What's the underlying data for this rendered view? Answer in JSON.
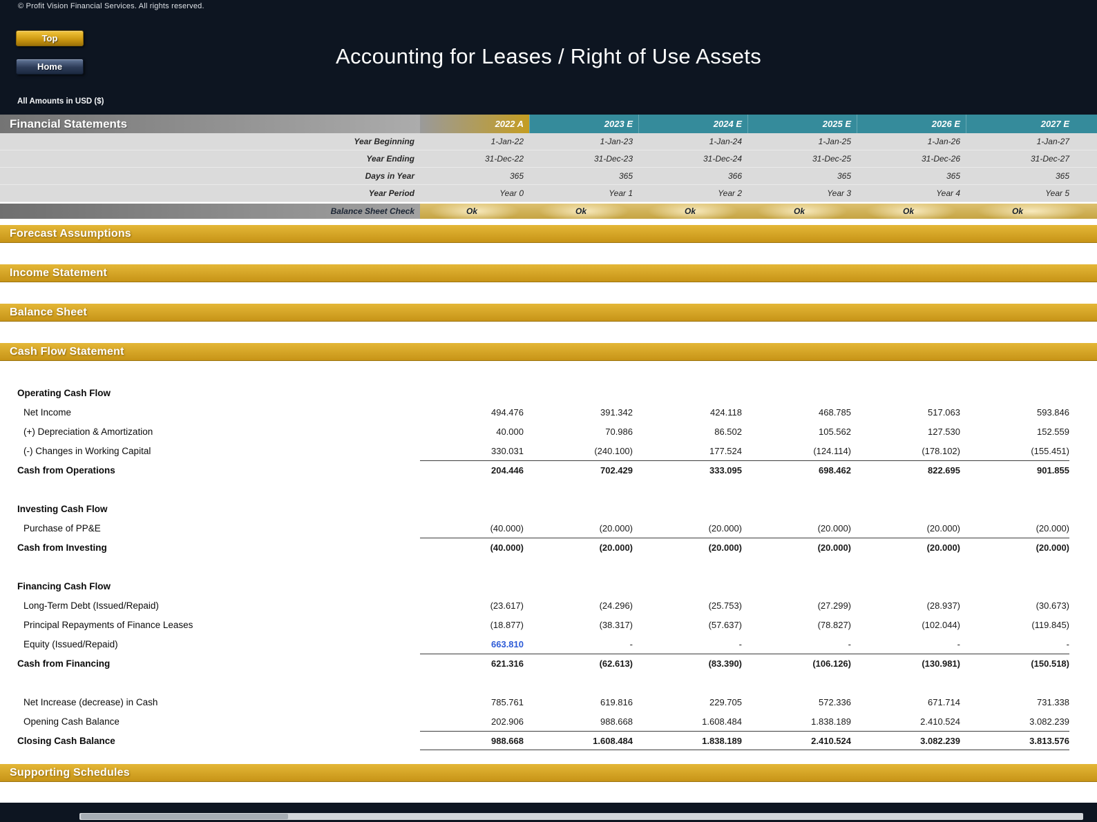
{
  "header": {
    "copyright": "© Profit Vision Financial Services. All rights reserved.",
    "buttons": {
      "top": "Top",
      "home": "Home"
    },
    "title": "Accounting for Leases / Right of Use Assets",
    "amounts_note": "All Amounts in USD ($)"
  },
  "table": {
    "title": "Financial Statements",
    "columns": [
      "2022 A",
      "2023 E",
      "2024 E",
      "2025 E",
      "2026 E",
      "2027 E"
    ],
    "info_rows": [
      {
        "label": "Year Beginning",
        "values": [
          "1-Jan-22",
          "1-Jan-23",
          "1-Jan-24",
          "1-Jan-25",
          "1-Jan-26",
          "1-Jan-27"
        ]
      },
      {
        "label": "Year Ending",
        "values": [
          "31-Dec-22",
          "31-Dec-23",
          "31-Dec-24",
          "31-Dec-25",
          "31-Dec-26",
          "31-Dec-27"
        ]
      },
      {
        "label": "Days in Year",
        "values": [
          "365",
          "365",
          "366",
          "365",
          "365",
          "365"
        ]
      },
      {
        "label": "Year Period",
        "values": [
          "Year 0",
          "Year 1",
          "Year 2",
          "Year 3",
          "Year 4",
          "Year 5"
        ]
      }
    ],
    "check_row": {
      "label": "Balance Sheet Check",
      "values": [
        "Ok",
        "Ok",
        "Ok",
        "Ok",
        "Ok",
        "Ok"
      ]
    }
  },
  "sections": {
    "forecast_assumptions": "Forecast Assumptions",
    "income_statement": "Income Statement",
    "balance_sheet": "Balance Sheet",
    "cash_flow_statement": "Cash Flow Statement",
    "supporting_schedules": "Supporting Schedules"
  },
  "cash_flow": {
    "rows": [
      {
        "type": "group",
        "label": "Operating Cash Flow"
      },
      {
        "type": "item",
        "label": "Net Income",
        "values": [
          "494.476",
          "391.342",
          "424.118",
          "468.785",
          "517.063",
          "593.846"
        ]
      },
      {
        "type": "item",
        "label": "(+) Depreciation & Amortization",
        "values": [
          "40.000",
          "70.986",
          "86.502",
          "105.562",
          "127.530",
          "152.559"
        ]
      },
      {
        "type": "item",
        "label": "(-) Changes in Working Capital",
        "values": [
          "330.031",
          "(240.100)",
          "177.524",
          "(124.114)",
          "(178.102)",
          "(155.451)"
        ]
      },
      {
        "type": "subtotal",
        "label": "Cash from Operations",
        "values": [
          "204.446",
          "702.429",
          "333.095",
          "698.462",
          "822.695",
          "901.855"
        ]
      },
      {
        "type": "spacer"
      },
      {
        "type": "group",
        "label": "Investing Cash Flow"
      },
      {
        "type": "item",
        "label": "Purchase of PP&E",
        "values": [
          "(40.000)",
          "(20.000)",
          "(20.000)",
          "(20.000)",
          "(20.000)",
          "(20.000)"
        ]
      },
      {
        "type": "subtotal",
        "label": "Cash from Investing",
        "values": [
          "(40.000)",
          "(20.000)",
          "(20.000)",
          "(20.000)",
          "(20.000)",
          "(20.000)"
        ]
      },
      {
        "type": "spacer"
      },
      {
        "type": "group",
        "label": "Financing Cash Flow"
      },
      {
        "type": "item",
        "label": "Long-Term Debt (Issued/Repaid)",
        "values": [
          "(23.617)",
          "(24.296)",
          "(25.753)",
          "(27.299)",
          "(28.937)",
          "(30.673)"
        ]
      },
      {
        "type": "item",
        "label": "Principal Repayments of Finance Leases",
        "values": [
          "(18.877)",
          "(38.317)",
          "(57.637)",
          "(78.827)",
          "(102.044)",
          "(119.845)"
        ]
      },
      {
        "type": "item",
        "label": "Equity (Issued/Repaid)",
        "values": [
          "663.810",
          "-",
          "-",
          "-",
          "-",
          "-"
        ],
        "blue_col": 0
      },
      {
        "type": "subtotal",
        "label": "Cash from Financing",
        "values": [
          "621.316",
          "(62.613)",
          "(83.390)",
          "(106.126)",
          "(130.981)",
          "(150.518)"
        ]
      },
      {
        "type": "spacer"
      },
      {
        "type": "item",
        "label": "Net Increase (decrease) in Cash",
        "values": [
          "785.761",
          "619.816",
          "229.705",
          "572.336",
          "671.714",
          "731.338"
        ]
      },
      {
        "type": "item",
        "label": "Opening Cash Balance",
        "values": [
          "202.906",
          "988.668",
          "1.608.484",
          "1.838.189",
          "2.410.524",
          "3.082.239"
        ]
      },
      {
        "type": "total",
        "label": "Closing Cash Balance",
        "values": [
          "988.668",
          "1.608.484",
          "1.838.189",
          "2.410.524",
          "3.082.239",
          "3.813.576"
        ]
      }
    ]
  },
  "colors": {
    "accent_gold": "#d2a11f",
    "accent_teal": "#358b9b",
    "header_navy": "#0d1521",
    "input_blue": "#2d5bd7"
  }
}
